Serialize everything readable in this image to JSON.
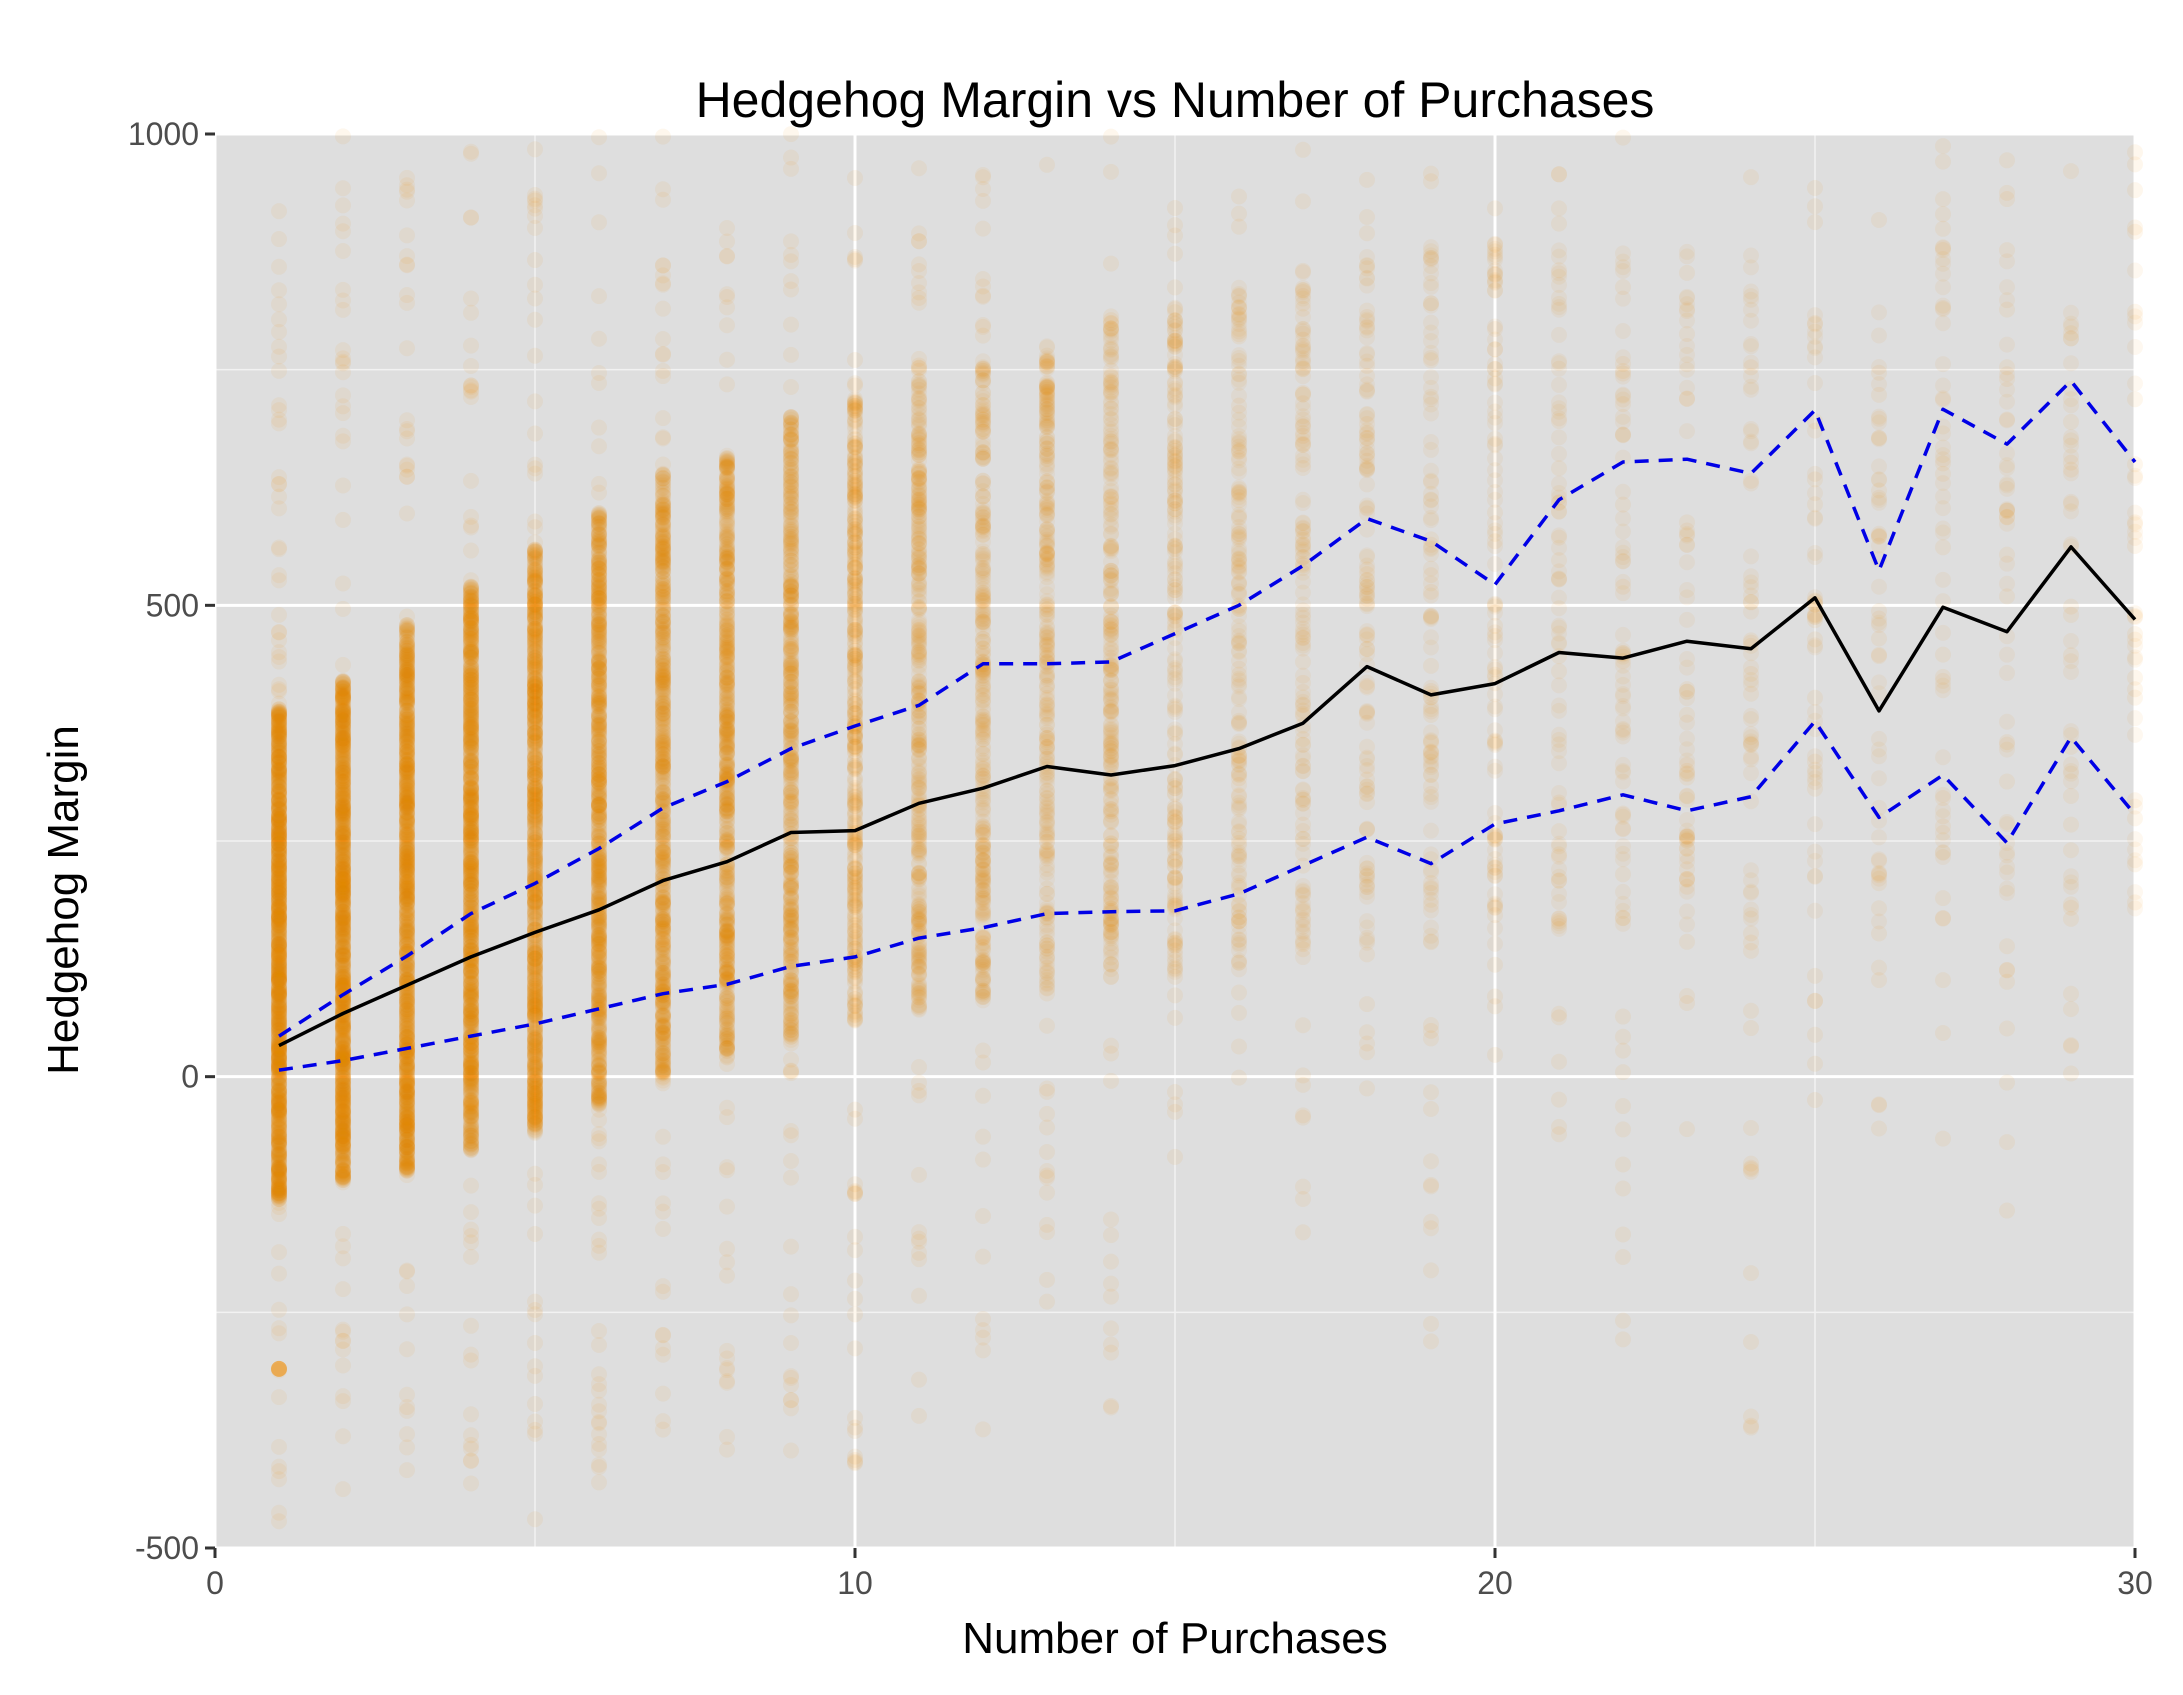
{
  "chart_data": {
    "type": "scatter",
    "title": "Hedgehog Margin vs Number of Purchases",
    "xlabel": "Number of Purchases",
    "ylabel": "Hedgehog Margin",
    "xlim": [
      0,
      30
    ],
    "ylim": [
      -500,
      1000
    ],
    "x_ticks": [
      0,
      10,
      20,
      30
    ],
    "x_tick_labels": [
      "0",
      "10",
      "20",
      "30"
    ],
    "y_ticks": [
      -500,
      0,
      500,
      1000
    ],
    "y_tick_labels": [
      "-500",
      "0",
      "500",
      "1000"
    ],
    "grid": true,
    "colors": {
      "panel": "#dedede",
      "grid_major": "#ffffff",
      "points": "#f28c00",
      "median_line": "#000000",
      "quantile_lines": "#0000e6"
    },
    "points_description": "semi-transparent orange points per integer purchase count; density decreasing with purchases",
    "point_columns": [
      {
        "x": 1,
        "dense_min": -130,
        "dense_max": 390,
        "sparse_min": -480,
        "sparse_max": 1000,
        "density": 1.0
      },
      {
        "x": 2,
        "dense_min": -110,
        "dense_max": 420,
        "sparse_min": -470,
        "sparse_max": 1000,
        "density": 0.95
      },
      {
        "x": 3,
        "dense_min": -100,
        "dense_max": 480,
        "sparse_min": -420,
        "sparse_max": 1000,
        "density": 0.9
      },
      {
        "x": 4,
        "dense_min": -80,
        "dense_max": 520,
        "sparse_min": -470,
        "sparse_max": 1000,
        "density": 0.85
      },
      {
        "x": 5,
        "dense_min": -60,
        "dense_max": 560,
        "sparse_min": -470,
        "sparse_max": 1000,
        "density": 0.8
      },
      {
        "x": 6,
        "dense_min": -30,
        "dense_max": 600,
        "sparse_min": -460,
        "sparse_max": 1000,
        "density": 0.7
      },
      {
        "x": 7,
        "dense_min": 0,
        "dense_max": 640,
        "sparse_min": -450,
        "sparse_max": 1000,
        "density": 0.6
      },
      {
        "x": 8,
        "dense_min": 20,
        "dense_max": 660,
        "sparse_min": -420,
        "sparse_max": 1000,
        "density": 0.55
      },
      {
        "x": 9,
        "dense_min": 40,
        "dense_max": 700,
        "sparse_min": -400,
        "sparse_max": 1000,
        "density": 0.45
      },
      {
        "x": 10,
        "dense_min": 60,
        "dense_max": 720,
        "sparse_min": -420,
        "sparse_max": 1000,
        "density": 0.35
      },
      {
        "x": 11,
        "dense_min": 70,
        "dense_max": 740,
        "sparse_min": -400,
        "sparse_max": 1000,
        "density": 0.3
      },
      {
        "x": 12,
        "dense_min": 80,
        "dense_max": 760,
        "sparse_min": -380,
        "sparse_max": 1000,
        "density": 0.25
      },
      {
        "x": 13,
        "dense_min": 90,
        "dense_max": 780,
        "sparse_min": -350,
        "sparse_max": 1000,
        "density": 0.22
      },
      {
        "x": 14,
        "dense_min": 90,
        "dense_max": 800,
        "sparse_min": -380,
        "sparse_max": 1000,
        "density": 0.2
      },
      {
        "x": 15,
        "dense_min": 100,
        "dense_max": 820,
        "sparse_min": -100,
        "sparse_max": 1000,
        "density": 0.15
      },
      {
        "x": 16,
        "dense_min": 110,
        "dense_max": 840,
        "sparse_min": -150,
        "sparse_max": 1000,
        "density": 0.12
      },
      {
        "x": 17,
        "dense_min": 120,
        "dense_max": 860,
        "sparse_min": -250,
        "sparse_max": 1000,
        "density": 0.1
      },
      {
        "x": 18,
        "dense_min": 130,
        "dense_max": 880,
        "sparse_min": -20,
        "sparse_max": 1000,
        "density": 0.08
      },
      {
        "x": 19,
        "dense_min": 130,
        "dense_max": 880,
        "sparse_min": -300,
        "sparse_max": 1000,
        "density": 0.07
      },
      {
        "x": 20,
        "dense_min": 140,
        "dense_max": 880,
        "sparse_min": -10,
        "sparse_max": 1000,
        "density": 0.06
      },
      {
        "x": 21,
        "dense_min": 150,
        "dense_max": 880,
        "sparse_min": -80,
        "sparse_max": 1000,
        "density": 0.05
      },
      {
        "x": 22,
        "dense_min": 150,
        "dense_max": 880,
        "sparse_min": -280,
        "sparse_max": 1000,
        "density": 0.05
      },
      {
        "x": 23,
        "dense_min": 150,
        "dense_max": 880,
        "sparse_min": -100,
        "sparse_max": 1000,
        "density": 0.04
      },
      {
        "x": 24,
        "dense_min": 160,
        "dense_max": 880,
        "sparse_min": -430,
        "sparse_max": 1000,
        "density": 0.04
      },
      {
        "x": 25,
        "dense_min": 160,
        "dense_max": 880,
        "sparse_min": -60,
        "sparse_max": 1000,
        "density": 0.03
      },
      {
        "x": 26,
        "dense_min": 160,
        "dense_max": 880,
        "sparse_min": -80,
        "sparse_max": 1000,
        "density": 0.03
      },
      {
        "x": 27,
        "dense_min": 170,
        "dense_max": 880,
        "sparse_min": -70,
        "sparse_max": 1000,
        "density": 0.03
      },
      {
        "x": 28,
        "dense_min": 170,
        "dense_max": 880,
        "sparse_min": -150,
        "sparse_max": 1000,
        "density": 0.03
      },
      {
        "x": 29,
        "dense_min": 170,
        "dense_max": 880,
        "sparse_min": -20,
        "sparse_max": 1000,
        "density": 0.025
      },
      {
        "x": 30,
        "dense_min": 170,
        "dense_max": 880,
        "sparse_min": 180,
        "sparse_max": 1000,
        "density": 0.02
      }
    ],
    "outlier_point": {
      "x": 1,
      "y": -310
    },
    "series": [
      {
        "name": "median",
        "style": "solid",
        "x": [
          1,
          2,
          3,
          4,
          5,
          6,
          7,
          8,
          9,
          10,
          11,
          12,
          13,
          14,
          15,
          16,
          17,
          18,
          19,
          20,
          21,
          22,
          23,
          24,
          25,
          26,
          27,
          28,
          29,
          30
        ],
        "values": [
          33,
          67,
          97,
          127,
          153,
          177,
          208,
          228,
          259,
          261,
          290,
          306,
          329,
          320,
          330,
          348,
          375,
          435,
          405,
          417,
          450,
          444,
          462,
          454,
          508,
          388,
          498,
          472,
          562,
          485
        ]
      },
      {
        "name": "upper quantile",
        "style": "dashed",
        "x": [
          1,
          2,
          3,
          4,
          5,
          6,
          7,
          8,
          9,
          10,
          11,
          12,
          13,
          14,
          15,
          16,
          17,
          18,
          19,
          20,
          21,
          22,
          23,
          24,
          25,
          26,
          27,
          28,
          29,
          30
        ],
        "values": [
          43,
          87,
          128,
          173,
          205,
          242,
          285,
          313,
          348,
          372,
          394,
          438,
          438,
          440,
          470,
          500,
          542,
          592,
          568,
          522,
          612,
          652,
          655,
          640,
          707,
          537,
          708,
          671,
          738,
          652
        ]
      },
      {
        "name": "lower quantile",
        "style": "dashed",
        "x": [
          1,
          2,
          3,
          4,
          5,
          6,
          7,
          8,
          9,
          10,
          11,
          12,
          13,
          14,
          15,
          16,
          17,
          18,
          19,
          20,
          21,
          22,
          23,
          24,
          25,
          26,
          27,
          28,
          29,
          30
        ],
        "values": [
          7,
          17,
          30,
          43,
          56,
          72,
          88,
          98,
          117,
          127,
          147,
          158,
          173,
          175,
          176,
          194,
          224,
          254,
          226,
          268,
          282,
          299,
          282,
          297,
          377,
          275,
          320,
          248,
          360,
          278
        ]
      }
    ]
  }
}
